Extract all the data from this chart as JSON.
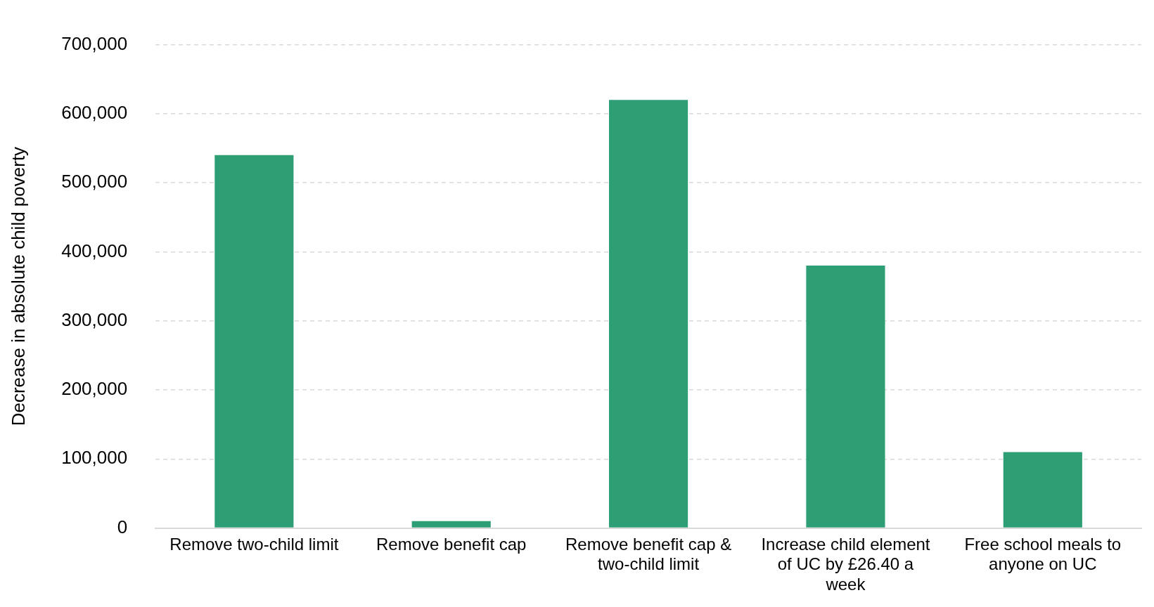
{
  "chart_data": {
    "type": "bar",
    "ylabel": "Decrease in absolute child poverty",
    "categories": [
      "Remove two-child limit",
      "Remove benefit cap",
      "Remove benefit cap & two-child limit",
      "Increase child element of UC by £26.40 a week",
      "Free school meals to anyone on UC"
    ],
    "values": [
      540000,
      10000,
      620000,
      380000,
      110000
    ],
    "color": "#2e9e74",
    "ylim": [
      0,
      700000
    ],
    "yticks": [
      0,
      {
        "value": 100000,
        "label": "100,000"
      },
      {
        "value": 200000,
        "label": "200,000"
      },
      {
        "value": 300000,
        "label": "300,000"
      },
      {
        "value": 400000,
        "label": "400,000"
      },
      {
        "value": 500000,
        "label": "500,000"
      },
      {
        "value": 600000,
        "label": "600,000"
      },
      {
        "value": 700000,
        "label": "700,000"
      }
    ],
    "grid": "y",
    "legend": false
  }
}
